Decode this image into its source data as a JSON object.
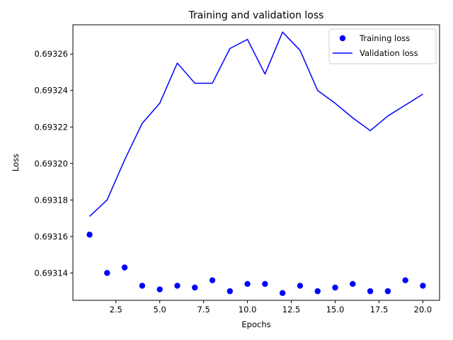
{
  "chart_data": {
    "type": "line",
    "title": "Training and validation loss",
    "xlabel": "Epochs",
    "ylabel": "Loss",
    "xlim": [
      0.05,
      20.95
    ],
    "ylim": [
      0.693125,
      0.693276
    ],
    "xticks": [
      2.5,
      5.0,
      7.5,
      10.0,
      12.5,
      15.0,
      17.5,
      20.0
    ],
    "xtick_labels": [
      "2.5",
      "5.0",
      "7.5",
      "10.0",
      "12.5",
      "15.0",
      "17.5",
      "20.0"
    ],
    "yticks": [
      0.69314,
      0.69316,
      0.69318,
      0.6932,
      0.69322,
      0.69324,
      0.69326
    ],
    "ytick_labels": [
      "0.69314",
      "0.69316",
      "0.69318",
      "0.69320",
      "0.69322",
      "0.69324",
      "0.69326"
    ],
    "legend_position": "top-right",
    "grid": false,
    "series": [
      {
        "name": "Training loss",
        "style": "markers",
        "color": "#0000ff",
        "x": [
          1,
          2,
          3,
          4,
          5,
          6,
          7,
          8,
          9,
          10,
          11,
          12,
          13,
          14,
          15,
          16,
          17,
          18,
          19,
          20
        ],
        "values": [
          0.693161,
          0.69314,
          0.693143,
          0.693133,
          0.693131,
          0.693133,
          0.693132,
          0.693136,
          0.69313,
          0.693134,
          0.693134,
          0.693129,
          0.693133,
          0.69313,
          0.693132,
          0.693134,
          0.69313,
          0.69313,
          0.693136,
          0.693133
        ]
      },
      {
        "name": "Validation loss",
        "style": "line",
        "color": "#0000ff",
        "x": [
          1,
          2,
          3,
          4,
          5,
          6,
          7,
          8,
          9,
          10,
          11,
          12,
          13,
          14,
          15,
          16,
          17,
          18,
          19,
          20
        ],
        "values": [
          0.693171,
          0.69318,
          0.693202,
          0.693222,
          0.693233,
          0.693255,
          0.693244,
          0.693244,
          0.693263,
          0.693268,
          0.693249,
          0.693272,
          0.693262,
          0.69324,
          0.693233,
          0.693225,
          0.693218,
          0.693226,
          0.693232,
          0.693238
        ]
      }
    ]
  }
}
